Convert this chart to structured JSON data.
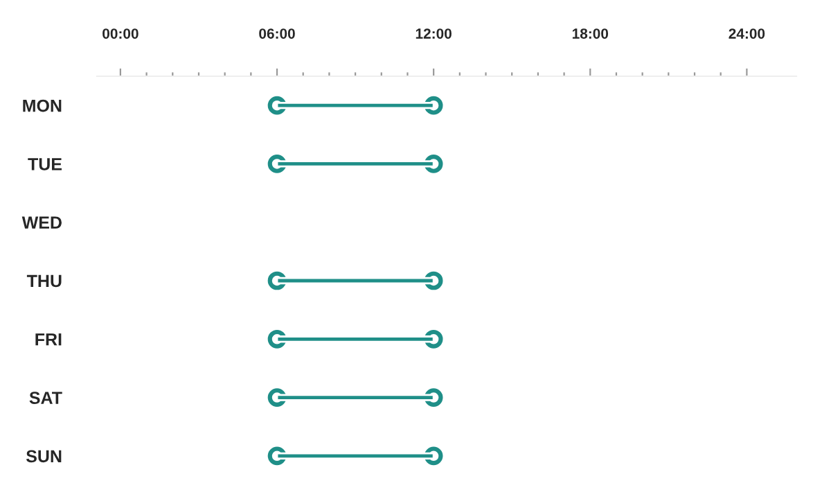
{
  "chart_data": {
    "type": "bar",
    "orientation": "horizontal",
    "marker": "circle",
    "categories": [
      "MON",
      "TUE",
      "WED",
      "THU",
      "FRI",
      "SAT",
      "SUN"
    ],
    "base": [
      6,
      6,
      null,
      6,
      6,
      6,
      6
    ],
    "values": [
      6,
      6,
      null,
      6,
      6,
      6,
      6
    ],
    "color": "#1f8f88",
    "xlim": [
      -0.9,
      25.9
    ],
    "xticks": [
      {
        "value": 0,
        "label": "00:00"
      },
      {
        "value": 1,
        "label": null
      },
      {
        "value": 2,
        "label": null
      },
      {
        "value": 3,
        "label": null
      },
      {
        "value": 4,
        "label": null
      },
      {
        "value": 5,
        "label": null
      },
      {
        "value": 6,
        "label": "06:00"
      },
      {
        "value": 7,
        "label": null
      },
      {
        "value": 8,
        "label": null
      },
      {
        "value": 9,
        "label": null
      },
      {
        "value": 10,
        "label": null
      },
      {
        "value": 11,
        "label": null
      },
      {
        "value": 12,
        "label": "12:00"
      },
      {
        "value": 13,
        "label": null
      },
      {
        "value": 14,
        "label": null
      },
      {
        "value": 15,
        "label": null
      },
      {
        "value": 16,
        "label": null
      },
      {
        "value": 17,
        "label": null
      },
      {
        "value": 18,
        "label": "18:00"
      },
      {
        "value": 19,
        "label": null
      },
      {
        "value": 20,
        "label": null
      },
      {
        "value": 21,
        "label": null
      },
      {
        "value": 22,
        "label": null
      },
      {
        "value": 23,
        "label": null
      },
      {
        "value": 24,
        "label": "24:00"
      }
    ],
    "grid": false
  }
}
